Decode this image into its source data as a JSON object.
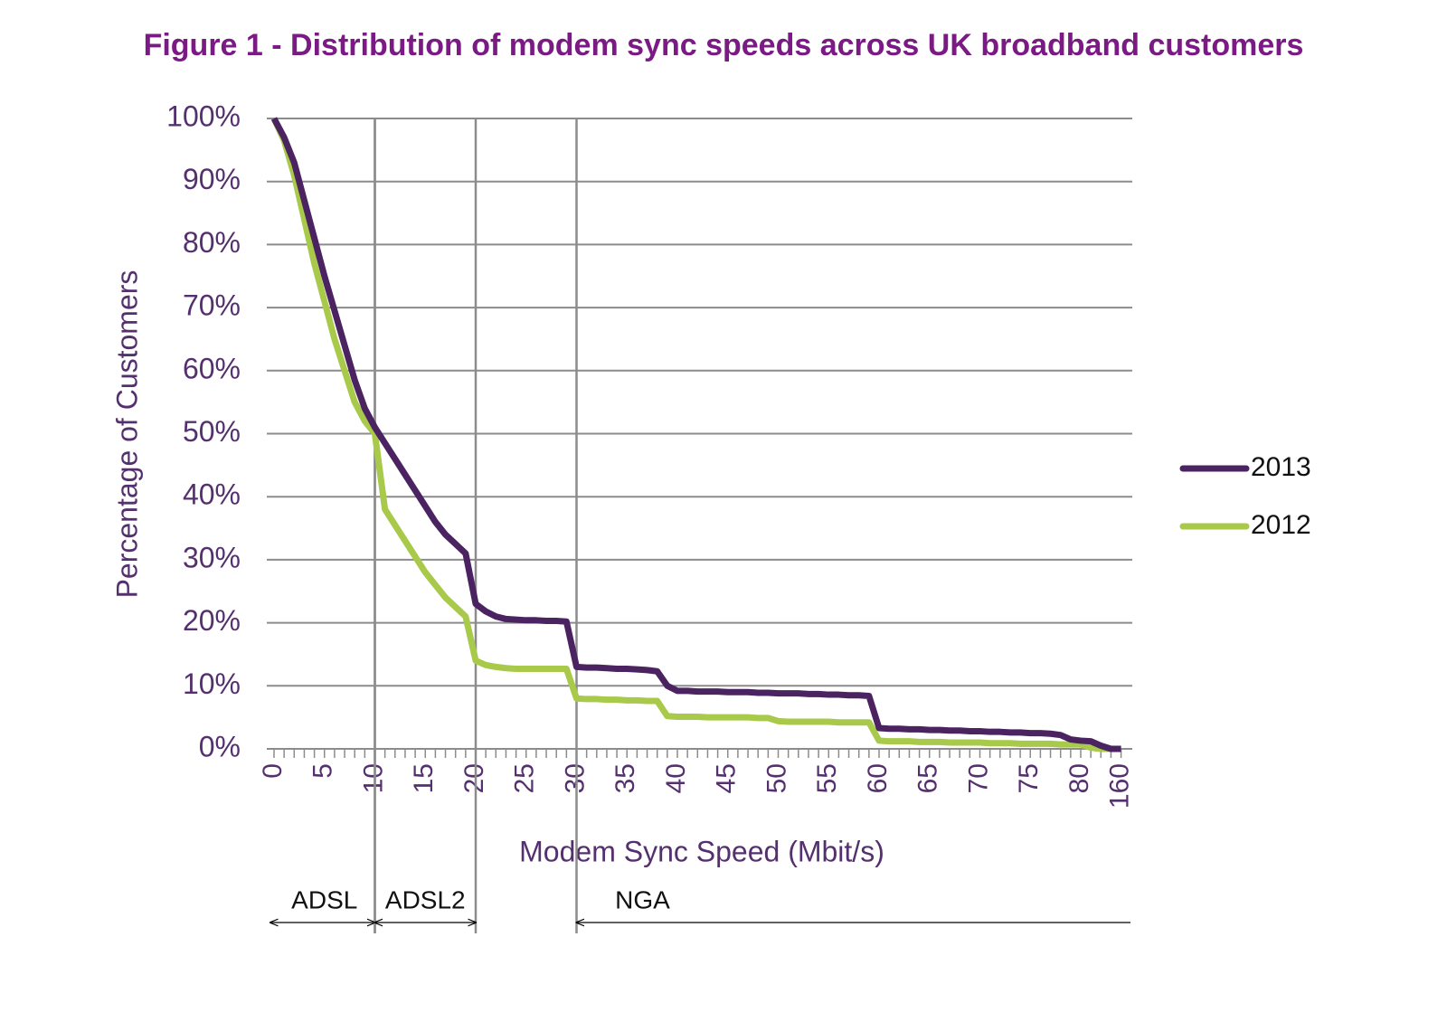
{
  "chart_data": {
    "type": "line",
    "title": "Figure 1 - Distribution of modem sync speeds across UK broadband customers",
    "x_label": "Modem Sync Speed (Mbit/s)",
    "y_label": "Percentage of Customers",
    "categories": [
      "0",
      null,
      null,
      null,
      null,
      "5",
      null,
      null,
      null,
      null,
      "10",
      null,
      null,
      null,
      null,
      "15",
      null,
      null,
      null,
      null,
      "20",
      null,
      null,
      null,
      null,
      "25",
      null,
      null,
      null,
      null,
      "30",
      null,
      null,
      null,
      null,
      "35",
      null,
      null,
      null,
      null,
      "40",
      null,
      null,
      null,
      null,
      "45",
      null,
      null,
      null,
      null,
      "50",
      null,
      null,
      null,
      null,
      "55",
      null,
      null,
      null,
      null,
      "60",
      null,
      null,
      null,
      null,
      "65",
      null,
      null,
      null,
      null,
      "70",
      null,
      null,
      null,
      null,
      "75",
      null,
      null,
      null,
      null,
      "80",
      null,
      null,
      null,
      "160"
    ],
    "series": [
      {
        "name": "2013",
        "color": "#4a2360",
        "values": [
          100,
          97,
          93,
          87,
          81,
          75,
          69.5,
          64,
          58.5,
          54,
          51,
          48.5,
          46,
          43.5,
          41,
          38.5,
          36,
          34,
          32.5,
          31,
          23,
          21.8,
          21,
          20.6,
          20.5,
          20.4,
          20.4,
          20.3,
          20.3,
          20.2,
          13,
          12.9,
          12.9,
          12.8,
          12.7,
          12.7,
          12.6,
          12.5,
          12.3,
          10,
          9.2,
          9.2,
          9.1,
          9.1,
          9.1,
          9,
          9,
          9,
          8.9,
          8.9,
          8.8,
          8.8,
          8.8,
          8.7,
          8.7,
          8.6,
          8.6,
          8.5,
          8.5,
          8.4,
          3.3,
          3.2,
          3.2,
          3.1,
          3.1,
          3,
          3,
          2.9,
          2.9,
          2.8,
          2.8,
          2.7,
          2.7,
          2.6,
          2.6,
          2.5,
          2.5,
          2.4,
          2.2,
          1.5,
          1.3,
          1.2,
          0.5,
          0,
          0
        ]
      },
      {
        "name": "2012",
        "color": "#a8c94a",
        "values": [
          100,
          96.5,
          91,
          84,
          77,
          71,
          65,
          60,
          55,
          52,
          50,
          38,
          35.5,
          33,
          30.5,
          28,
          26,
          24,
          22.5,
          21,
          14,
          13.3,
          13,
          12.8,
          12.7,
          12.7,
          12.7,
          12.7,
          12.7,
          12.7,
          8,
          7.9,
          7.9,
          7.8,
          7.8,
          7.7,
          7.7,
          7.6,
          7.6,
          5.2,
          5.1,
          5.1,
          5.1,
          5,
          5,
          5,
          5,
          5,
          4.9,
          4.9,
          4.4,
          4.3,
          4.3,
          4.3,
          4.3,
          4.3,
          4.2,
          4.2,
          4.2,
          4.2,
          1.3,
          1.2,
          1.2,
          1.2,
          1.1,
          1.1,
          1.1,
          1,
          1,
          1,
          1,
          0.9,
          0.9,
          0.9,
          0.8,
          0.8,
          0.8,
          0.8,
          0.7,
          0.7,
          0.7,
          0.2,
          0,
          0,
          0
        ]
      }
    ],
    "ylim": [
      0,
      100
    ],
    "yticks": [
      {
        "value": 0,
        "label": "0%"
      },
      {
        "value": 10,
        "label": "10%"
      },
      {
        "value": 20,
        "label": "20%"
      },
      {
        "value": 30,
        "label": "30%"
      },
      {
        "value": 40,
        "label": "40%"
      },
      {
        "value": 50,
        "label": "50%"
      },
      {
        "value": 60,
        "label": "60%"
      },
      {
        "value": 70,
        "label": "70%"
      },
      {
        "value": 80,
        "label": "80%"
      },
      {
        "value": 90,
        "label": "90%"
      },
      {
        "value": 100,
        "label": "100%"
      }
    ],
    "grid": true,
    "legend": "right",
    "regions": [
      {
        "label": "ADSL",
        "from": 0,
        "to": 10
      },
      {
        "label": "ADSL2",
        "from": 10,
        "to": 20
      },
      {
        "label": "NGA",
        "from": 30,
        "to": 84
      }
    ]
  }
}
